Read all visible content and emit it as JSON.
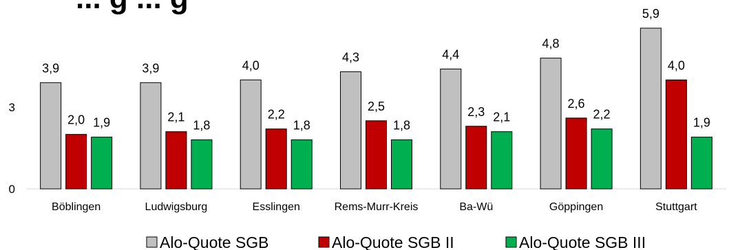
{
  "chart_data": {
    "type": "bar",
    "title": "... g ... g",
    "categories": [
      "Böblingen",
      "Ludwigsburg",
      "Esslingen",
      "Rems-Murr-Kreis",
      "Ba-Wü",
      "Göppingen",
      "Stuttgart"
    ],
    "series": [
      {
        "name": "Alo-Quote SGB",
        "color": "#c0c0c0",
        "values": [
          3.9,
          3.9,
          4.0,
          4.3,
          4.4,
          4.8,
          5.9
        ],
        "labels": [
          "3,9",
          "3,9",
          "4,0",
          "4,3",
          "4,4",
          "4,8",
          "5,9"
        ]
      },
      {
        "name": "Alo-Quote SGB II",
        "color": "#c00000",
        "values": [
          2.0,
          2.1,
          2.2,
          2.5,
          2.3,
          2.6,
          4.0
        ],
        "labels": [
          "2,0",
          "2,1",
          "2,2",
          "2,5",
          "2,3",
          "2,6",
          "4,0"
        ]
      },
      {
        "name": "Alo-Quote SGB III",
        "color": "#00b050",
        "values": [
          1.9,
          1.8,
          1.8,
          1.8,
          2.1,
          2.2,
          1.9
        ],
        "labels": [
          "1,9",
          "1,8",
          "1,8",
          "1,8",
          "2,1",
          "2,2",
          "1,9"
        ]
      }
    ],
    "yticks": [
      0,
      3
    ],
    "ylim": [
      0,
      6
    ],
    "grid": false,
    "legend": "bottom"
  }
}
